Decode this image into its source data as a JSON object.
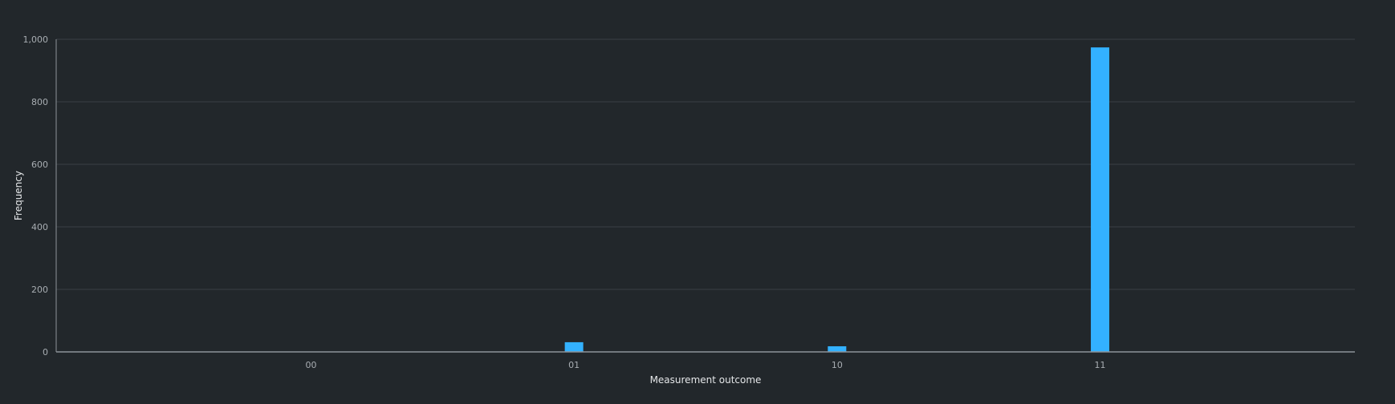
{
  "chart_data": {
    "type": "bar",
    "categories": [
      "00",
      "01",
      "10",
      "11"
    ],
    "series": [
      {
        "values": [
          1,
          31,
          18,
          974
        ]
      }
    ],
    "xlabel": "Measurement outcome",
    "ylabel": "Frequency",
    "ylim": [
      0,
      1000
    ],
    "yticks": [
      0,
      200,
      400,
      600,
      800,
      1000
    ],
    "ytick_labels": [
      "0",
      "200",
      "400",
      "600",
      "800",
      "1,000"
    ],
    "grid": true,
    "legend": false,
    "colors": {
      "background": "#22272b",
      "bar": "#33b1ff",
      "grid": "#393f45",
      "axis": "#8d9399",
      "tick_text": "#a8adb2",
      "label_text": "#e4e6e8"
    }
  }
}
